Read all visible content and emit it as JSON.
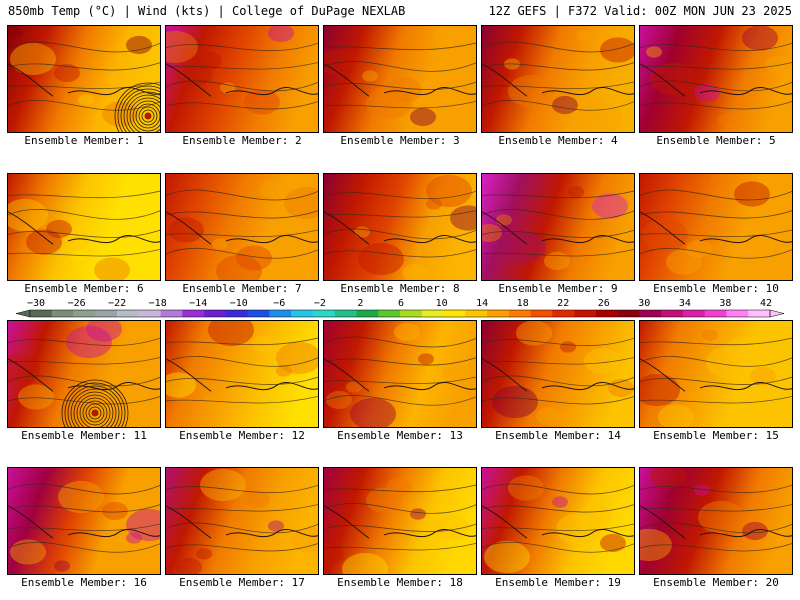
{
  "header": {
    "left": "850mb Temp (°C) | Wind (kts) | College of DuPage NEXLAB",
    "right": "12Z GEFS | F372 Valid: 00Z MON JUN 23 2025"
  },
  "members": [
    "Ensemble Member: 1",
    "Ensemble Member: 2",
    "Ensemble Member: 3",
    "Ensemble Member: 4",
    "Ensemble Member: 5",
    "Ensemble Member: 6",
    "Ensemble Member: 7",
    "Ensemble Member: 8",
    "Ensemble Member: 9",
    "Ensemble Member: 10",
    "Ensemble Member: 11",
    "Ensemble Member: 12",
    "Ensemble Member: 13",
    "Ensemble Member: 14",
    "Ensemble Member: 15",
    "Ensemble Member: 16",
    "Ensemble Member: 17",
    "Ensemble Member: 18",
    "Ensemble Member: 19",
    "Ensemble Member: 20"
  ],
  "colorbar": {
    "ticks": [
      "−30",
      "−26",
      "−22",
      "−18",
      "−14",
      "−10",
      "−6",
      "−2",
      "2",
      "6",
      "10",
      "14",
      "18",
      "22",
      "26",
      "30",
      "34",
      "38",
      "42"
    ],
    "colors": [
      "#556b55",
      "#7a8f7a",
      "#8f9f8f",
      "#9aa3a8",
      "#b4bcc4",
      "#c7b8d8",
      "#b57ad8",
      "#9a2ed6",
      "#6a1fd0",
      "#3a2bd8",
      "#1f4fe0",
      "#1f8ee8",
      "#27c4e8",
      "#2fd6c8",
      "#24c08a",
      "#1fa84a",
      "#5cc82a",
      "#a8dc22",
      "#e8ec22",
      "#ffe600",
      "#ffc400",
      "#ffa000",
      "#ff7a00",
      "#f45000",
      "#e02a00",
      "#c81200",
      "#a80000",
      "#8a0010",
      "#a00050",
      "#c0107a",
      "#d820a8",
      "#f040d0",
      "#ff80f0",
      "#ffc0ff"
    ]
  },
  "legend_colors": {
    "hot_magenta": "#c8109a",
    "dark_red": "#8a0008",
    "red": "#c01800",
    "orange_red": "#e04400",
    "orange": "#f07a00",
    "light_orange": "#f8a000",
    "yellow_orange": "#fcc400",
    "yellow": "#ffe000",
    "lime": "#b8dc20"
  }
}
